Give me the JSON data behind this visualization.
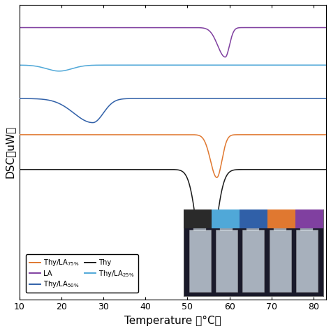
{
  "xlabel": "Temperature （°C）",
  "ylabel": "DSC（uW）",
  "xlim": [
    10,
    83
  ],
  "xticks": [
    10,
    20,
    30,
    40,
    50,
    60,
    70,
    80
  ],
  "colors": {
    "orange": "#E07830",
    "blue": "#3060A8",
    "cyan": "#50A8D8",
    "purple": "#8040A0",
    "black": "#1A1A1A"
  },
  "baselines": {
    "purple": 0.88,
    "cyan": 0.6,
    "blue": 0.35,
    "orange": 0.08,
    "black": -0.18
  },
  "legend": [
    {
      "label": "Thy/LA$_{75\\%}$",
      "color": "#E07830"
    },
    {
      "label": "Thy/LA$_{50\\%}$",
      "color": "#3060A8"
    },
    {
      "label": "Thy/LA$_{25\\%}$",
      "color": "#50A8D8"
    },
    {
      "label": "LA",
      "color": "#8040A0"
    },
    {
      "label": "Thy",
      "color": "#1A1A1A"
    }
  ],
  "inset_tab_colors": [
    "#50A8D8",
    "#3060A8",
    "#E07830",
    "#8040A0"
  ],
  "inset_bg": "#1a1a2a"
}
